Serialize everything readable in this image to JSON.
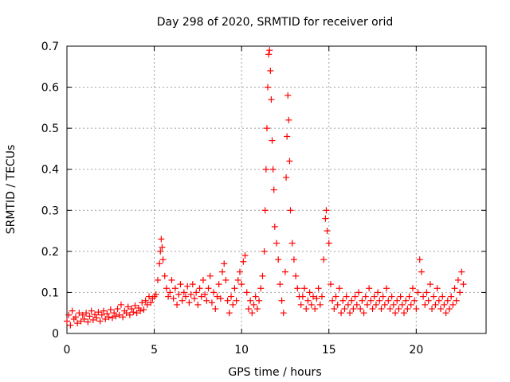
{
  "chart_data": {
    "type": "scatter",
    "title": "Day 298 of 2020, SRMTID for receiver orid",
    "xlabel": "GPS time / hours",
    "ylabel": "SRMTID / TECUs",
    "xlim": [
      0,
      24
    ],
    "ylim": [
      0,
      0.7
    ],
    "x_ticks": [
      0,
      5,
      10,
      15,
      20
    ],
    "y_ticks": [
      0,
      0.1,
      0.2,
      0.3,
      0.4,
      0.5,
      0.6,
      0.7
    ],
    "marker": "+",
    "color": "#ff0000",
    "grid": true,
    "series": [
      {
        "name": "SRMTID",
        "points": [
          [
            0.0,
            0.03
          ],
          [
            0.1,
            0.045
          ],
          [
            0.2,
            0.02
          ],
          [
            0.3,
            0.055
          ],
          [
            0.4,
            0.035
          ],
          [
            0.5,
            0.04
          ],
          [
            0.6,
            0.025
          ],
          [
            0.7,
            0.05
          ],
          [
            0.8,
            0.03
          ],
          [
            0.9,
            0.045
          ],
          [
            1.0,
            0.035
          ],
          [
            1.1,
            0.05
          ],
          [
            1.2,
            0.028
          ],
          [
            1.3,
            0.042
          ],
          [
            1.4,
            0.055
          ],
          [
            1.5,
            0.033
          ],
          [
            1.6,
            0.046
          ],
          [
            1.7,
            0.038
          ],
          [
            1.8,
            0.052
          ],
          [
            1.9,
            0.03
          ],
          [
            2.0,
            0.045
          ],
          [
            2.1,
            0.055
          ],
          [
            2.2,
            0.035
          ],
          [
            2.3,
            0.048
          ],
          [
            2.4,
            0.04
          ],
          [
            2.5,
            0.058
          ],
          [
            2.6,
            0.038
          ],
          [
            2.7,
            0.05
          ],
          [
            2.8,
            0.042
          ],
          [
            2.9,
            0.06
          ],
          [
            3.0,
            0.045
          ],
          [
            3.1,
            0.07
          ],
          [
            3.2,
            0.04
          ],
          [
            3.3,
            0.055
          ],
          [
            3.4,
            0.05
          ],
          [
            3.5,
            0.065
          ],
          [
            3.6,
            0.045
          ],
          [
            3.7,
            0.06
          ],
          [
            3.8,
            0.052
          ],
          [
            3.9,
            0.068
          ],
          [
            4.0,
            0.05
          ],
          [
            4.1,
            0.062
          ],
          [
            4.2,
            0.055
          ],
          [
            4.3,
            0.075
          ],
          [
            4.4,
            0.058
          ],
          [
            4.5,
            0.08
          ],
          [
            4.6,
            0.07
          ],
          [
            4.7,
            0.09
          ],
          [
            4.8,
            0.075
          ],
          [
            4.9,
            0.085
          ],
          [
            5.0,
            0.09
          ],
          [
            5.1,
            0.095
          ],
          [
            5.2,
            0.13
          ],
          [
            5.3,
            0.17
          ],
          [
            5.35,
            0.2
          ],
          [
            5.4,
            0.23
          ],
          [
            5.45,
            0.21
          ],
          [
            5.5,
            0.18
          ],
          [
            5.6,
            0.14
          ],
          [
            5.7,
            0.11
          ],
          [
            5.8,
            0.09
          ],
          [
            5.9,
            0.1
          ],
          [
            6.0,
            0.13
          ],
          [
            6.1,
            0.085
          ],
          [
            6.2,
            0.11
          ],
          [
            6.3,
            0.07
          ],
          [
            6.4,
            0.095
          ],
          [
            6.5,
            0.12
          ],
          [
            6.6,
            0.08
          ],
          [
            6.7,
            0.1
          ],
          [
            6.8,
            0.09
          ],
          [
            6.9,
            0.115
          ],
          [
            7.0,
            0.075
          ],
          [
            7.1,
            0.095
          ],
          [
            7.2,
            0.12
          ],
          [
            7.3,
            0.085
          ],
          [
            7.4,
            0.1
          ],
          [
            7.5,
            0.07
          ],
          [
            7.6,
            0.11
          ],
          [
            7.7,
            0.09
          ],
          [
            7.8,
            0.13
          ],
          [
            7.9,
            0.095
          ],
          [
            8.0,
            0.08
          ],
          [
            8.1,
            0.11
          ],
          [
            8.2,
            0.14
          ],
          [
            8.3,
            0.075
          ],
          [
            8.4,
            0.1
          ],
          [
            8.5,
            0.06
          ],
          [
            8.6,
            0.09
          ],
          [
            8.7,
            0.12
          ],
          [
            8.8,
            0.085
          ],
          [
            8.9,
            0.15
          ],
          [
            9.0,
            0.17
          ],
          [
            9.1,
            0.13
          ],
          [
            9.2,
            0.08
          ],
          [
            9.3,
            0.05
          ],
          [
            9.4,
            0.09
          ],
          [
            9.5,
            0.07
          ],
          [
            9.6,
            0.11
          ],
          [
            9.7,
            0.08
          ],
          [
            9.8,
            0.13
          ],
          [
            9.9,
            0.15
          ],
          [
            10.0,
            0.12
          ],
          [
            10.1,
            0.175
          ],
          [
            10.2,
            0.19
          ],
          [
            10.3,
            0.1
          ],
          [
            10.4,
            0.06
          ],
          [
            10.5,
            0.08
          ],
          [
            10.6,
            0.05
          ],
          [
            10.7,
            0.07
          ],
          [
            10.8,
            0.09
          ],
          [
            10.9,
            0.06
          ],
          [
            11.0,
            0.08
          ],
          [
            11.1,
            0.11
          ],
          [
            11.2,
            0.14
          ],
          [
            11.3,
            0.2
          ],
          [
            11.35,
            0.3
          ],
          [
            11.4,
            0.4
          ],
          [
            11.45,
            0.5
          ],
          [
            11.5,
            0.6
          ],
          [
            11.55,
            0.68
          ],
          [
            11.6,
            0.69
          ],
          [
            11.65,
            0.64
          ],
          [
            11.7,
            0.57
          ],
          [
            11.75,
            0.47
          ],
          [
            11.8,
            0.4
          ],
          [
            11.85,
            0.35
          ],
          [
            11.9,
            0.26
          ],
          [
            12.0,
            0.22
          ],
          [
            12.1,
            0.18
          ],
          [
            12.2,
            0.12
          ],
          [
            12.3,
            0.08
          ],
          [
            12.4,
            0.05
          ],
          [
            12.5,
            0.15
          ],
          [
            12.55,
            0.38
          ],
          [
            12.6,
            0.48
          ],
          [
            12.65,
            0.58
          ],
          [
            12.7,
            0.52
          ],
          [
            12.75,
            0.42
          ],
          [
            12.8,
            0.3
          ],
          [
            12.9,
            0.22
          ],
          [
            13.0,
            0.18
          ],
          [
            13.1,
            0.14
          ],
          [
            13.2,
            0.11
          ],
          [
            13.3,
            0.09
          ],
          [
            13.4,
            0.07
          ],
          [
            13.5,
            0.09
          ],
          [
            13.6,
            0.11
          ],
          [
            13.7,
            0.06
          ],
          [
            13.8,
            0.08
          ],
          [
            13.9,
            0.1
          ],
          [
            14.0,
            0.07
          ],
          [
            14.1,
            0.09
          ],
          [
            14.2,
            0.06
          ],
          [
            14.3,
            0.085
          ],
          [
            14.4,
            0.11
          ],
          [
            14.5,
            0.07
          ],
          [
            14.6,
            0.09
          ],
          [
            14.7,
            0.18
          ],
          [
            14.8,
            0.28
          ],
          [
            14.85,
            0.3
          ],
          [
            14.9,
            0.25
          ],
          [
            15.0,
            0.22
          ],
          [
            15.1,
            0.12
          ],
          [
            15.2,
            0.08
          ],
          [
            15.3,
            0.06
          ],
          [
            15.4,
            0.09
          ],
          [
            15.5,
            0.07
          ],
          [
            15.6,
            0.11
          ],
          [
            15.7,
            0.05
          ],
          [
            15.8,
            0.08
          ],
          [
            15.9,
            0.06
          ],
          [
            16.0,
            0.09
          ],
          [
            16.1,
            0.07
          ],
          [
            16.2,
            0.05
          ],
          [
            16.3,
            0.08
          ],
          [
            16.4,
            0.06
          ],
          [
            16.5,
            0.09
          ],
          [
            16.6,
            0.07
          ],
          [
            16.7,
            0.1
          ],
          [
            16.8,
            0.06
          ],
          [
            16.9,
            0.08
          ],
          [
            17.0,
            0.05
          ],
          [
            17.1,
            0.09
          ],
          [
            17.2,
            0.07
          ],
          [
            17.3,
            0.11
          ],
          [
            17.4,
            0.08
          ],
          [
            17.5,
            0.06
          ],
          [
            17.6,
            0.09
          ],
          [
            17.7,
            0.07
          ],
          [
            17.8,
            0.1
          ],
          [
            17.9,
            0.08
          ],
          [
            18.0,
            0.06
          ],
          [
            18.1,
            0.09
          ],
          [
            18.2,
            0.07
          ],
          [
            18.3,
            0.11
          ],
          [
            18.4,
            0.08
          ],
          [
            18.5,
            0.06
          ],
          [
            18.6,
            0.09
          ],
          [
            18.7,
            0.07
          ],
          [
            18.8,
            0.05
          ],
          [
            18.9,
            0.08
          ],
          [
            19.0,
            0.06
          ],
          [
            19.1,
            0.09
          ],
          [
            19.2,
            0.07
          ],
          [
            19.3,
            0.05
          ],
          [
            19.4,
            0.08
          ],
          [
            19.5,
            0.06
          ],
          [
            19.6,
            0.09
          ],
          [
            19.7,
            0.07
          ],
          [
            19.8,
            0.11
          ],
          [
            19.9,
            0.08
          ],
          [
            20.0,
            0.06
          ],
          [
            20.1,
            0.1
          ],
          [
            20.2,
            0.18
          ],
          [
            20.3,
            0.15
          ],
          [
            20.4,
            0.09
          ],
          [
            20.5,
            0.07
          ],
          [
            20.6,
            0.1
          ],
          [
            20.7,
            0.08
          ],
          [
            20.8,
            0.12
          ],
          [
            20.9,
            0.06
          ],
          [
            21.0,
            0.09
          ],
          [
            21.1,
            0.07
          ],
          [
            21.2,
            0.11
          ],
          [
            21.3,
            0.08
          ],
          [
            21.4,
            0.06
          ],
          [
            21.5,
            0.09
          ],
          [
            21.6,
            0.07
          ],
          [
            21.7,
            0.05
          ],
          [
            21.8,
            0.08
          ],
          [
            21.9,
            0.06
          ],
          [
            22.0,
            0.09
          ],
          [
            22.1,
            0.07
          ],
          [
            22.2,
            0.11
          ],
          [
            22.3,
            0.08
          ],
          [
            22.4,
            0.13
          ],
          [
            22.5,
            0.1
          ],
          [
            22.6,
            0.15
          ],
          [
            22.7,
            0.12
          ]
        ]
      }
    ]
  }
}
